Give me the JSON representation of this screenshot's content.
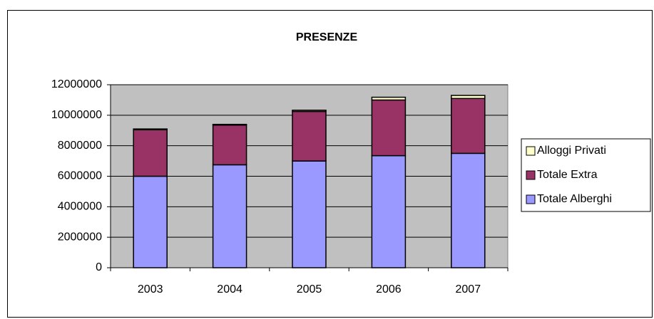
{
  "chart_data": {
    "type": "bar",
    "stacked": true,
    "title": "PRESENZE",
    "categories": [
      "2003",
      "2004",
      "2005",
      "2006",
      "2007"
    ],
    "series": [
      {
        "name": "Totale Alberghi",
        "color": "#9999ff",
        "values": [
          6000000,
          6750000,
          7000000,
          7350000,
          7500000
        ]
      },
      {
        "name": "Totale Extra",
        "color": "#993366",
        "values": [
          3050000,
          2600000,
          3250000,
          3650000,
          3600000
        ]
      },
      {
        "name": "Alloggi Privati",
        "color": "#ffffcc",
        "values": [
          50000,
          50000,
          80000,
          180000,
          200000
        ]
      }
    ],
    "ylim": [
      0,
      12000000
    ],
    "yticks": [
      0,
      2000000,
      4000000,
      6000000,
      8000000,
      10000000,
      12000000
    ],
    "grid": true,
    "legend": "right",
    "plot_background": "#c0c0c0"
  }
}
